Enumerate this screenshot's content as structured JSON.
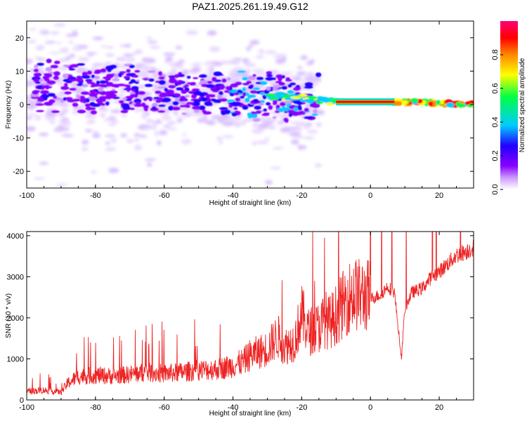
{
  "title": "PAZ1.2025.261.19.49.G12",
  "colors": {
    "snr_line": "#ee2222",
    "frame": "#000000"
  },
  "chart_data": [
    {
      "type": "heatmap",
      "xlabel": "Height of straight line (km)",
      "ylabel": "Frequency (Hz)",
      "xlim": [
        -100,
        30
      ],
      "ylim": [
        -25,
        25
      ],
      "xticks": [
        -100,
        -80,
        -60,
        -40,
        -20,
        0,
        20
      ],
      "xtick_labels": [
        "-100",
        "-80",
        "-60",
        "-40",
        "-20",
        "0",
        "20"
      ],
      "yticks": [
        -20,
        -10,
        0,
        10,
        20
      ],
      "ytick_labels": [
        "-20",
        "-10",
        "0",
        "10",
        "20"
      ],
      "colorbar": {
        "label": "Normalized spectral amplitude",
        "range": [
          0,
          1
        ],
        "ticks": [
          0.0,
          0.2,
          0.4,
          0.6,
          0.8
        ],
        "tick_labels": [
          "0.0",
          "0.2",
          "0.4",
          "0.6",
          "0.8"
        ],
        "colormap": [
          "#ffffff",
          "#cc99ff",
          "#8800ff",
          "#2200ff",
          "#00ccff",
          "#00ff44",
          "#ffff00",
          "#ff8800",
          "#ff0000",
          "#ff0077"
        ]
      },
      "ridge": [
        {
          "x": -100,
          "y": 6
        },
        {
          "x": -80,
          "y": 5
        },
        {
          "x": -60,
          "y": 4
        },
        {
          "x": -40,
          "y": 3
        },
        {
          "x": -20,
          "y": 2
        },
        {
          "x": -10,
          "y": 0.8
        },
        {
          "x": 10,
          "y": 0.8
        },
        {
          "x": 30,
          "y": 0
        }
      ]
    },
    {
      "type": "line",
      "xlabel": "Height of straight line (km)",
      "ylabel": "SNR (10 * v/v)",
      "xlim": [
        -100,
        30
      ],
      "ylim": [
        0,
        4100
      ],
      "xticks": [
        -100,
        -80,
        -60,
        -40,
        -20,
        0,
        20
      ],
      "xtick_labels": [
        "-100",
        "-80",
        "-60",
        "-40",
        "-20",
        "0",
        "20"
      ],
      "yticks": [
        0,
        1000,
        2000,
        3000,
        4000
      ],
      "ytick_labels": [
        "0",
        "1000",
        "2000",
        "3000",
        "4000"
      ],
      "series": [
        {
          "x": [
            -100,
            -95,
            -90,
            -88,
            -85,
            -80,
            -75,
            -70,
            -65,
            -60,
            -55,
            -50,
            -45,
            -40,
            -37,
            -35,
            -30,
            -27,
            -25,
            -22,
            -20,
            -18,
            -15,
            -13,
            -12,
            -10,
            -7,
            -5,
            -3,
            0,
            3,
            5,
            7,
            8,
            9,
            10,
            12,
            15,
            18,
            20,
            25,
            28,
            30
          ],
          "y": [
            200,
            230,
            180,
            400,
            550,
            580,
            560,
            600,
            650,
            620,
            650,
            700,
            720,
            800,
            900,
            1050,
            1200,
            1500,
            1250,
            1400,
            2000,
            1600,
            1700,
            1900,
            1800,
            2000,
            2350,
            2500,
            2450,
            2450,
            2550,
            2750,
            2600,
            1800,
            1000,
            2200,
            2600,
            2700,
            3000,
            3100,
            3500,
            3600,
            3700
          ]
        }
      ]
    }
  ]
}
